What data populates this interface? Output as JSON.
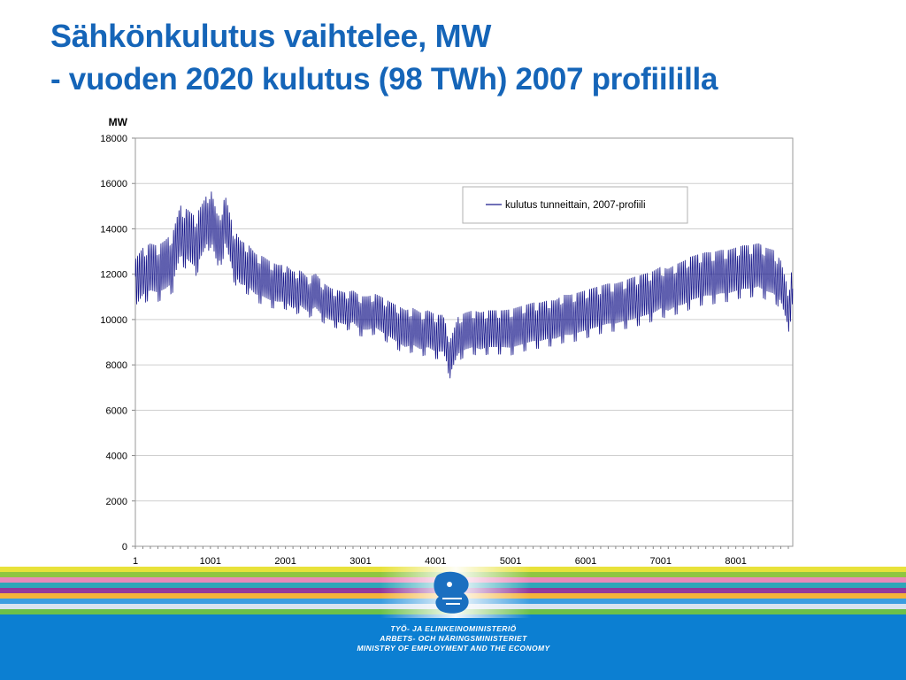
{
  "slide": {
    "title": "Sähkönkulutus vaihtelee, MW",
    "subtitle": "- vuoden 2020 kulutus (98 TWh) 2007 profiililla"
  },
  "footer": {
    "ministry_lines": [
      "TYÖ- JA ELINKEINOMINISTERIÖ",
      "ARBETS- OCH NÄRINGSMINISTERIET",
      "MINISTRY OF EMPLOYMENT AND THE ECONOMY"
    ],
    "stripe_colors": [
      "#e8e23a",
      "#8fc642",
      "#e98ab8",
      "#2fa7b8",
      "#93399a",
      "#f4b33a",
      "#3b9de0",
      "#d9e3ef",
      "#6cc04a"
    ],
    "background_color": "#0c7fd2",
    "logo_icon": "lion-emblem-icon"
  },
  "chart_data": {
    "type": "line",
    "y_unit_label": "MW",
    "xlabel": "",
    "ylabel": "",
    "ylim": [
      0,
      18000
    ],
    "y_ticks": [
      0,
      2000,
      4000,
      6000,
      8000,
      10000,
      12000,
      14000,
      16000,
      18000
    ],
    "xlim": [
      1,
      8760
    ],
    "x_ticks": [
      1,
      1001,
      2001,
      3001,
      4001,
      5001,
      6001,
      7001,
      8001
    ],
    "grid": "horizontal",
    "legend_position": "top-right",
    "line_color": "#1a1a8c",
    "series": [
      {
        "name": "kulutus tunneittain, 2007-profiili",
        "x": [
          1,
          100,
          200,
          300,
          400,
          500,
          600,
          700,
          800,
          900,
          1000,
          1100,
          1200,
          1300,
          1400,
          1500,
          1600,
          1700,
          1800,
          1900,
          2000,
          2100,
          2200,
          2300,
          2400,
          2500,
          2600,
          2700,
          2800,
          2900,
          3000,
          3100,
          3200,
          3300,
          3400,
          3500,
          3600,
          3700,
          3800,
          3900,
          4000,
          4100,
          4200,
          4300,
          4400,
          4500,
          4600,
          4700,
          4800,
          4900,
          5000,
          5100,
          5200,
          5300,
          5400,
          5500,
          5600,
          5700,
          5800,
          5900,
          6000,
          6100,
          6200,
          6300,
          6400,
          6500,
          6600,
          6700,
          6800,
          6900,
          7000,
          7100,
          7200,
          7300,
          7400,
          7500,
          7600,
          7700,
          7800,
          7900,
          8000,
          8100,
          8200,
          8300,
          8400,
          8500,
          8600,
          8700,
          8760
        ],
        "y": [
          11500,
          12000,
          12200,
          12100,
          12300,
          12600,
          13800,
          13600,
          13300,
          13900,
          14600,
          13300,
          14300,
          13000,
          12400,
          12300,
          11900,
          11800,
          11600,
          11500,
          11500,
          11200,
          11300,
          11000,
          11200,
          10800,
          10600,
          10500,
          10400,
          10500,
          10200,
          10200,
          10300,
          10100,
          9900,
          9700,
          9500,
          9600,
          9400,
          9500,
          9300,
          9300,
          8300,
          9200,
          9400,
          9500,
          9400,
          9500,
          9500,
          9500,
          9500,
          9600,
          9700,
          9800,
          9800,
          9900,
          9900,
          10100,
          10100,
          10200,
          10300,
          10400,
          10500,
          10600,
          10600,
          10700,
          10800,
          10900,
          11000,
          11100,
          11300,
          11200,
          11400,
          11500,
          11700,
          11800,
          11900,
          11900,
          12000,
          12000,
          12100,
          12200,
          12200,
          12300,
          12100,
          12000,
          11600,
          10400,
          11500
        ],
        "daily_amplitude_mw": [
          1400,
          1400,
          1400,
          1400,
          1450,
          1500,
          1500,
          1500,
          1500,
          1500,
          1500,
          1450,
          1400,
          1350,
          1300,
          1250,
          1200,
          1200,
          1150,
          1100,
          1100,
          1100,
          1050,
          1000,
          1000,
          1000,
          950,
          950,
          950,
          950,
          1000,
          1000,
          1000,
          1050,
          1050,
          1100,
          1100,
          1100,
          1100,
          1100,
          1100,
          1100,
          1000,
          1100,
          1100,
          1100,
          1100,
          1100,
          1100,
          1100,
          1150,
          1150,
          1150,
          1150,
          1150,
          1150,
          1150,
          1200,
          1200,
          1200,
          1200,
          1200,
          1200,
          1200,
          1200,
          1200,
          1250,
          1250,
          1250,
          1250,
          1250,
          1250,
          1250,
          1300,
          1300,
          1300,
          1300,
          1300,
          1300,
          1300,
          1300,
          1300,
          1300,
          1300,
          1300,
          1300,
          1200,
          1100,
          1100
        ]
      }
    ]
  }
}
